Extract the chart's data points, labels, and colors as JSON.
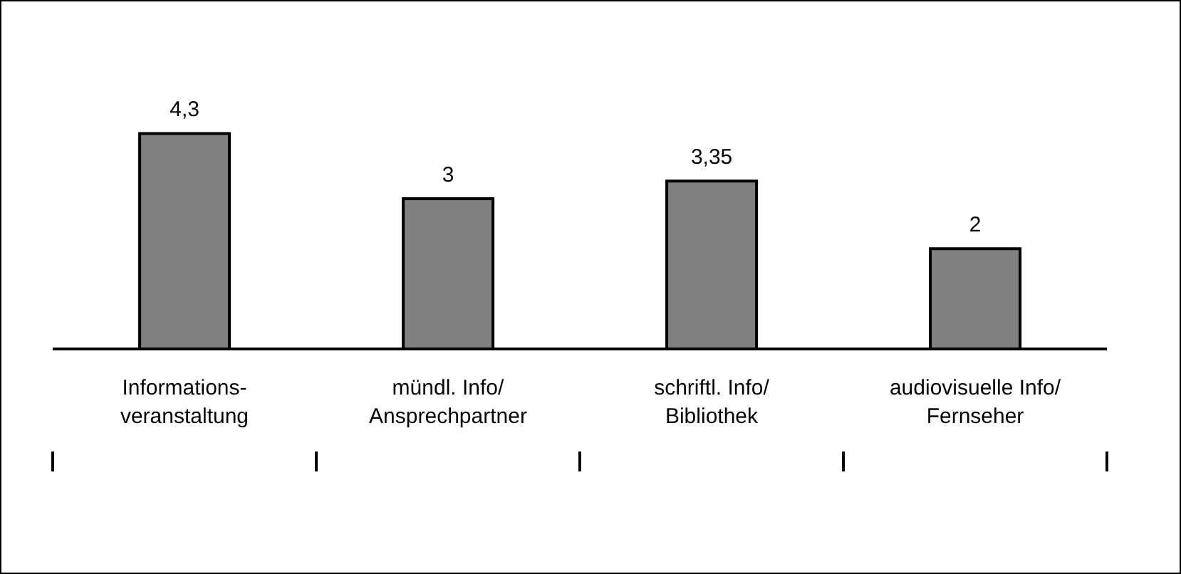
{
  "chart_data": {
    "type": "bar",
    "categories": [
      "Informations-\nveranstaltung",
      "mündl. Info/\nAnsprechpartner",
      "schriftl. Info/\nBibliothek",
      "audiovisuelle Info/\nFernseher"
    ],
    "values": [
      4.3,
      3,
      3.35,
      2
    ],
    "value_labels": [
      "4,3",
      "3",
      "3,35",
      "2"
    ],
    "color": "#808080",
    "grid": false,
    "legend": false
  }
}
